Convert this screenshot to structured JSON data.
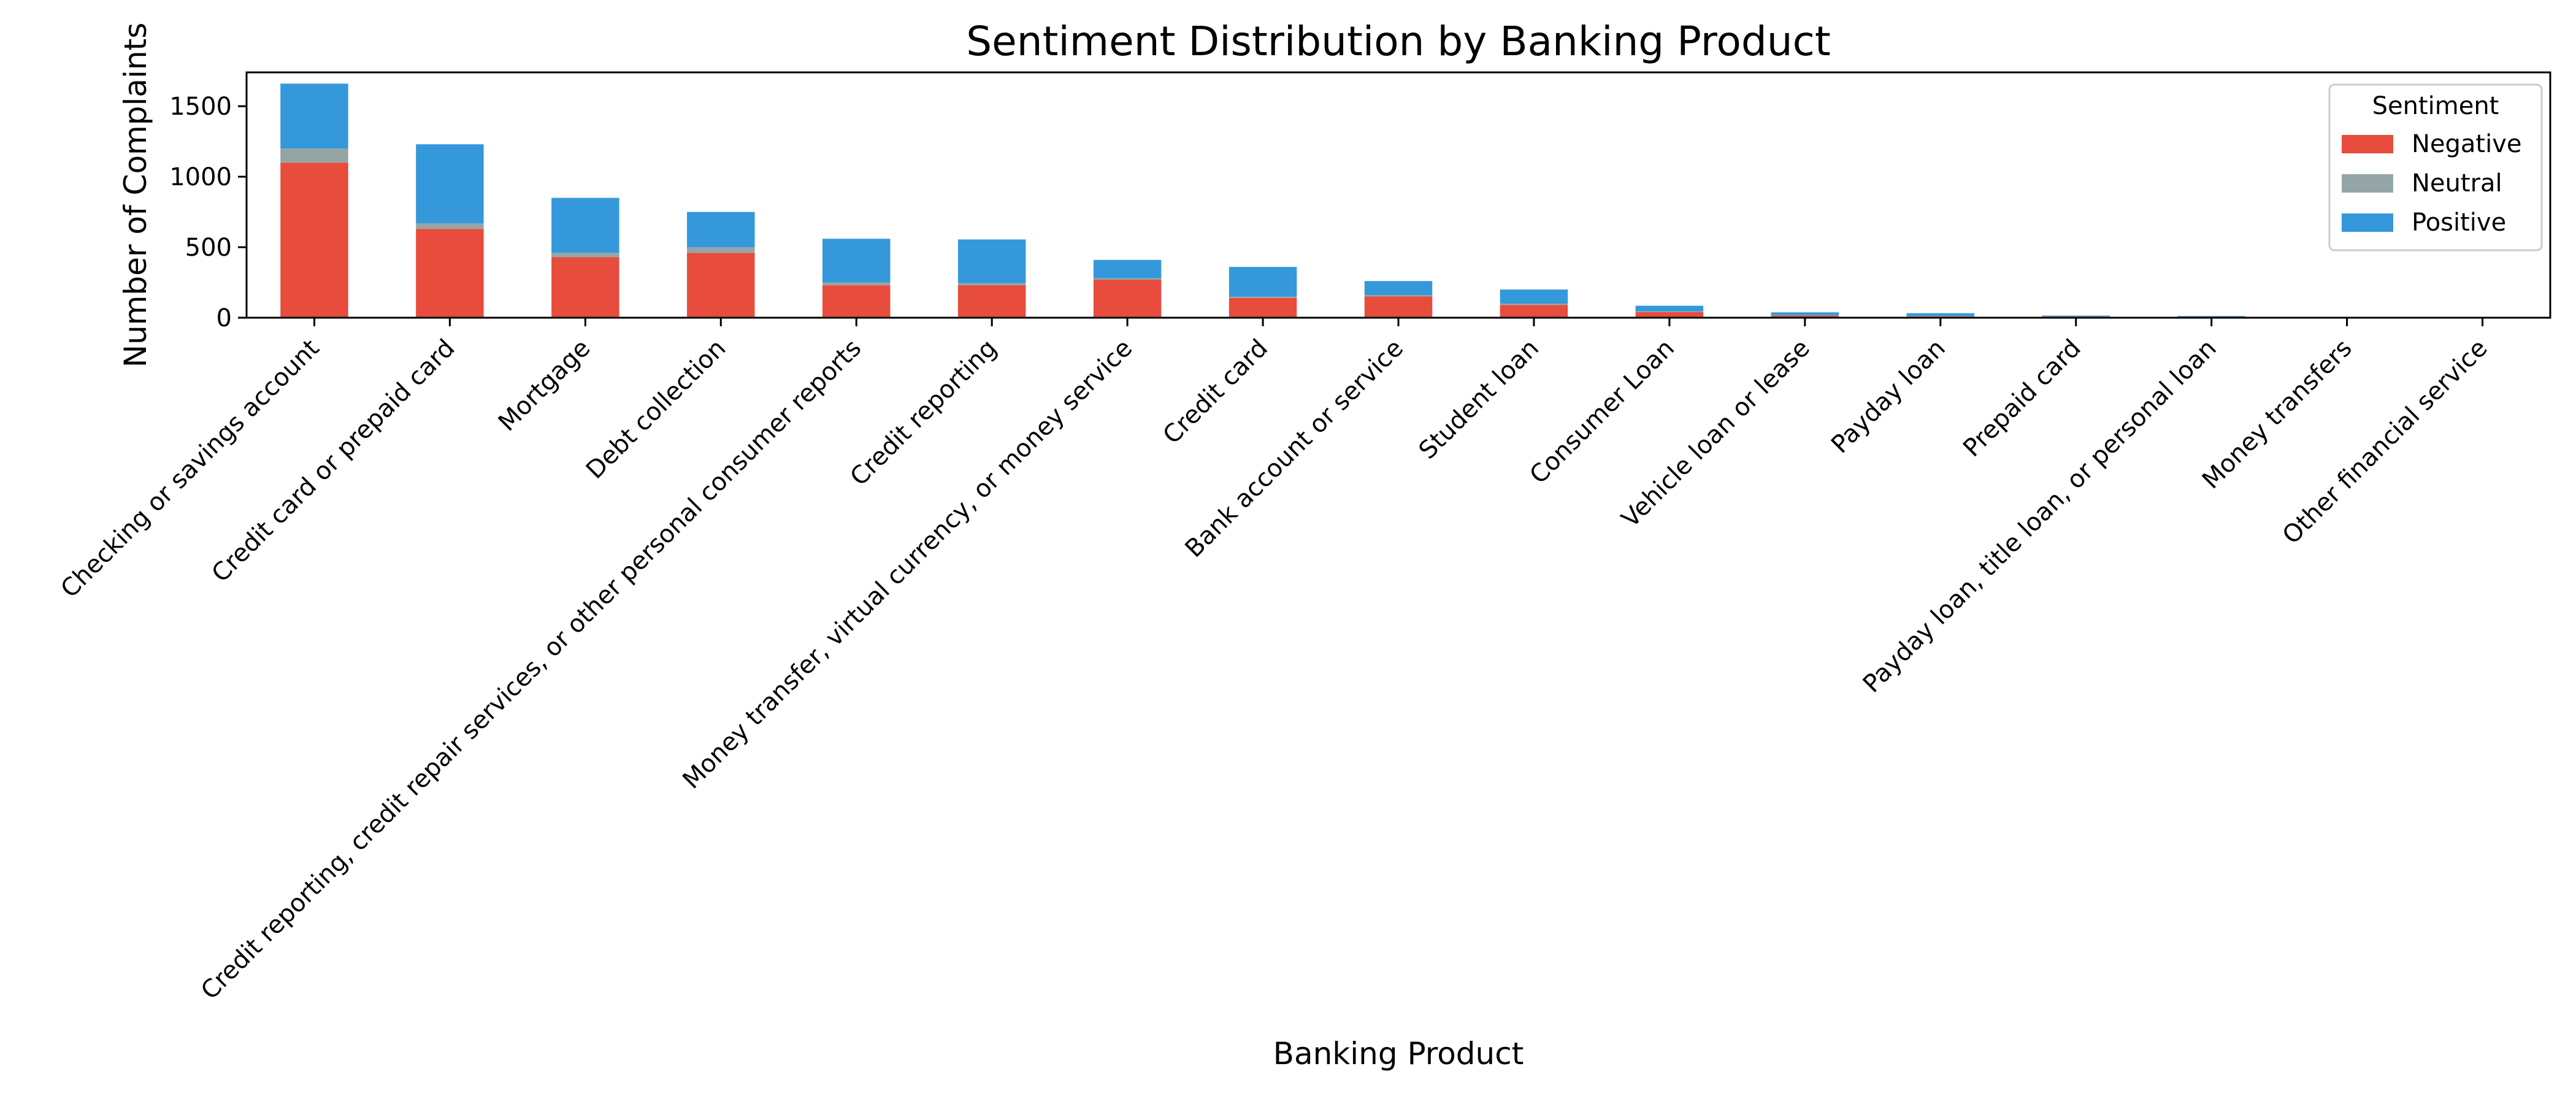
{
  "chart_data": {
    "type": "bar",
    "stacked": true,
    "title": "Sentiment Distribution by Banking Product",
    "xlabel": "Banking Product",
    "ylabel": "Number of Complaints",
    "ylim": [
      0,
      1740
    ],
    "yticks": [
      0,
      500,
      1000,
      1500
    ],
    "grid": false,
    "legend": {
      "title": "Sentiment",
      "position": "top-right"
    },
    "categories": [
      "Checking or savings account",
      "Credit card or prepaid card",
      "Mortgage",
      "Debt collection",
      "Credit reporting, credit repair services, or other personal consumer reports",
      "Credit reporting",
      "Money transfer, virtual currency, or money service",
      "Credit card",
      "Bank account or service",
      "Student loan",
      "Consumer Loan",
      "Vehicle loan or lease",
      "Payday loan",
      "Prepaid card",
      "Payday loan, title loan, or personal loan",
      "Money transfers",
      "Other financial service"
    ],
    "series": [
      {
        "name": "Negative",
        "color": "#e74c3c",
        "values": [
          1100,
          630,
          430,
          460,
          230,
          230,
          270,
          140,
          150,
          90,
          40,
          15,
          10,
          8,
          6,
          4,
          0
        ]
      },
      {
        "name": "Neutral",
        "color": "#95a5a6",
        "values": [
          100,
          40,
          30,
          40,
          20,
          15,
          10,
          10,
          10,
          10,
          5,
          3,
          2,
          1,
          1,
          0,
          0
        ]
      },
      {
        "name": "Positive",
        "color": "#3498db",
        "values": [
          460,
          560,
          390,
          250,
          310,
          310,
          130,
          210,
          100,
          100,
          40,
          20,
          20,
          6,
          5,
          2,
          0
        ]
      }
    ]
  }
}
